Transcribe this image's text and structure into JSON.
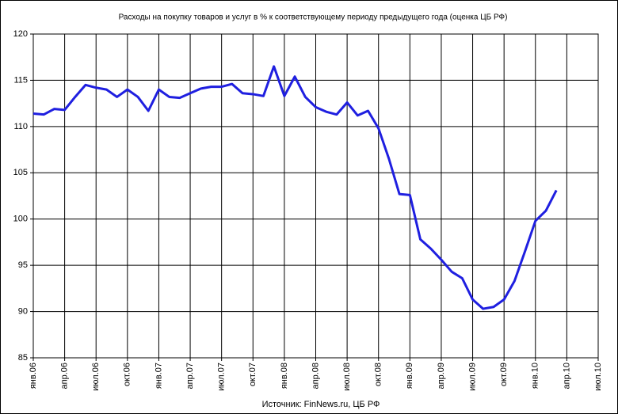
{
  "chart_data": {
    "type": "line",
    "title": "Расходы на покупку товаров и услуг в % к соответствующему периоду предыдущего года (оценка ЦБ РФ)",
    "caption": "Источник: FinNews.ru, ЦБ РФ",
    "categories": [
      "янв.06",
      null,
      null,
      "апр.06",
      null,
      null,
      "июл.06",
      null,
      null,
      "окт.06",
      null,
      null,
      "янв.07",
      null,
      null,
      "апр.07",
      null,
      null,
      "июл.07",
      null,
      null,
      "окт.07",
      null,
      null,
      "янв.08",
      null,
      null,
      "апр.08",
      null,
      null,
      "июл.08",
      null,
      null,
      "окт.08",
      null,
      null,
      "янв.09",
      null,
      null,
      "апр.09",
      null,
      null,
      "июл.09",
      null,
      null,
      "окт.09",
      null,
      null,
      "янв.10",
      null,
      null,
      "апр.10",
      null,
      null,
      "июл.10"
    ],
    "series": [
      {
        "name": "Расходы",
        "color": "#1f1fe0",
        "values": [
          111.4,
          111.3,
          111.9,
          111.8,
          113.2,
          114.5,
          114.2,
          114.0,
          113.2,
          114.0,
          113.2,
          111.7,
          114.0,
          113.2,
          113.1,
          113.6,
          114.1,
          114.3,
          114.3,
          114.6,
          113.6,
          113.5,
          113.3,
          116.5,
          113.3,
          115.4,
          113.2,
          112.1,
          111.6,
          111.3,
          112.6,
          111.2,
          111.7,
          109.8,
          106.5,
          102.7,
          102.6,
          97.8,
          96.8,
          95.6,
          94.3,
          93.6,
          91.3,
          90.3,
          90.5,
          91.3,
          93.3,
          96.5,
          99.8,
          100.9,
          103.1,
          null,
          null,
          null,
          null
        ]
      }
    ],
    "ylim": [
      85,
      120
    ],
    "yticks": [
      85,
      90,
      95,
      100,
      105,
      110,
      115,
      120
    ],
    "grid": true
  }
}
